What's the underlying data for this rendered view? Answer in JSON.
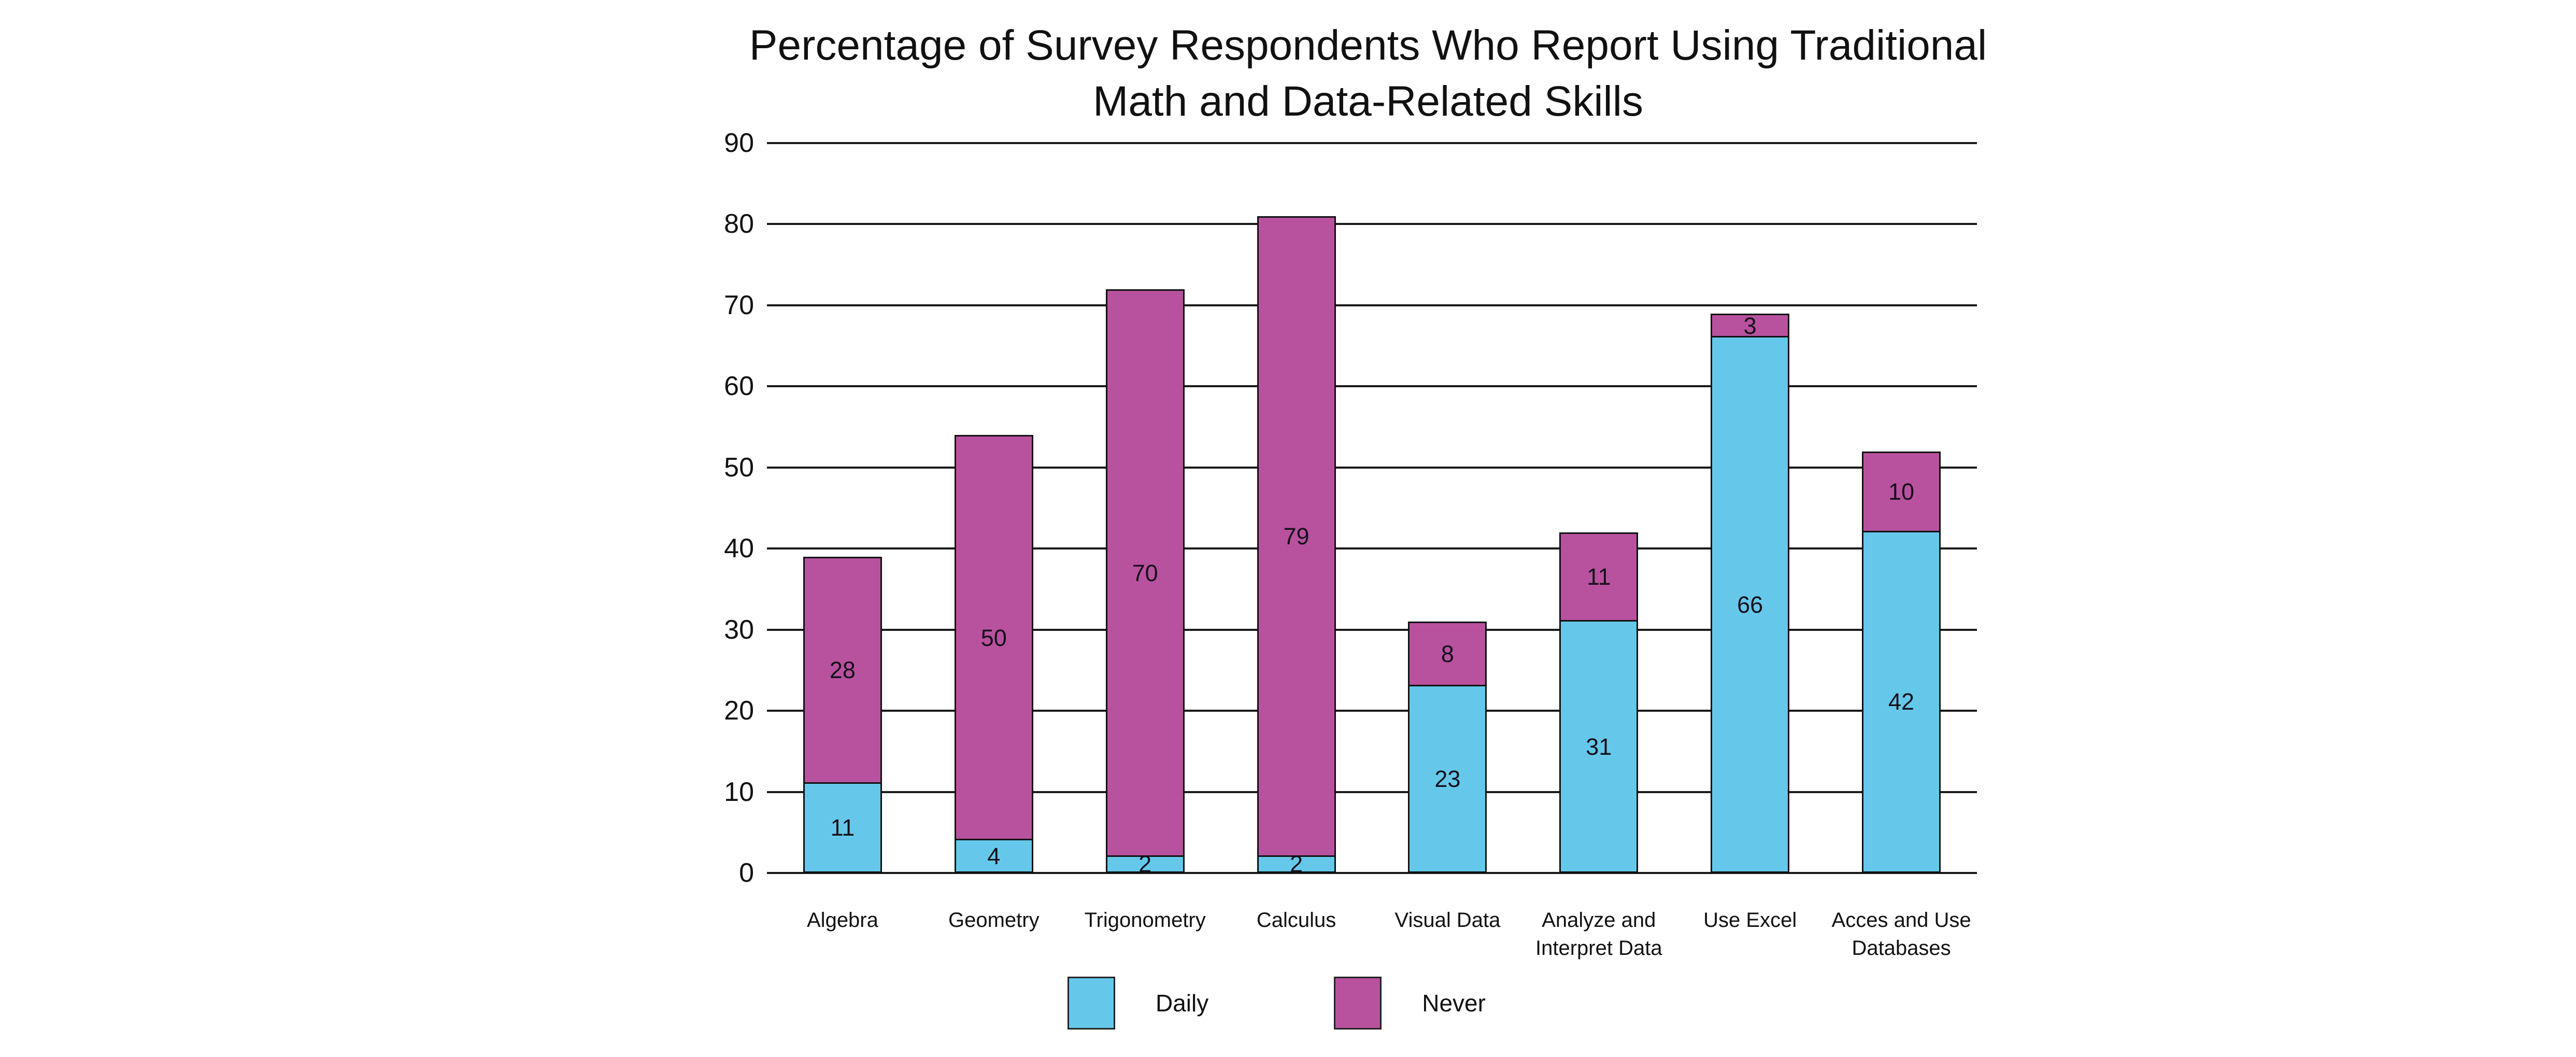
{
  "chart_data": {
    "type": "bar",
    "stacked": true,
    "title": "Percentage of Survey Respondents Who Report Using Traditional Math and Data-Related Skills",
    "title_lines": [
      "Percentage of Survey Respondents Who Report Using Traditional",
      "Math and Data-Related Skills"
    ],
    "categories": [
      "Algebra",
      "Geometry",
      "Trigonometry",
      "Calculus",
      "Visual Data",
      "Analyze and Interpret Data",
      "Use Excel",
      "Acces and Use Databases"
    ],
    "series": [
      {
        "name": "Daily",
        "color": "#65C8EA",
        "values": [
          11,
          4,
          2,
          2,
          23,
          31,
          66,
          42
        ]
      },
      {
        "name": "Never",
        "color": "#B8529F",
        "values": [
          28,
          50,
          70,
          79,
          8,
          11,
          3,
          10
        ]
      }
    ],
    "xlabel": "",
    "ylabel": "",
    "ylim": [
      0,
      90
    ],
    "y_ticks": [
      0,
      10,
      20,
      30,
      40,
      50,
      60,
      70,
      80,
      90
    ],
    "grid": "horizontal",
    "legend_position": "bottom",
    "value_labels": "inside-segments"
  }
}
